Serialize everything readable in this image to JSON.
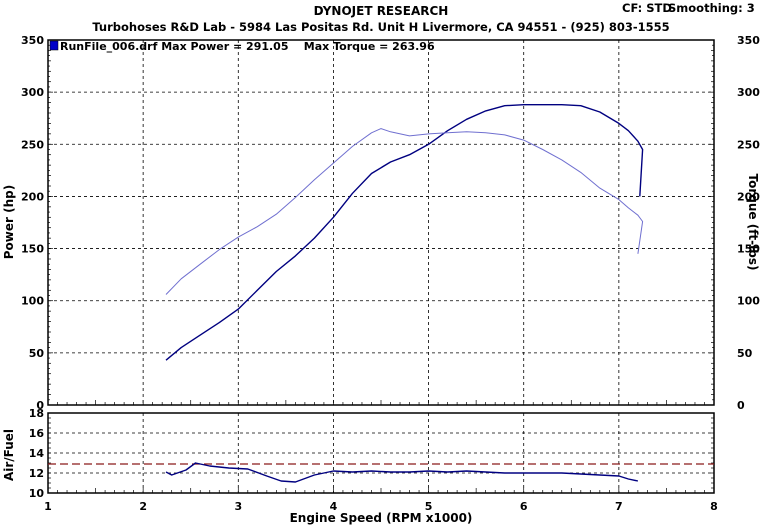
{
  "header": {
    "title": "DYNOJET RESEARCH",
    "subtitle": "Turbohoses R&D Lab - 5984 Las Positas Rd. Unit H Livermore, CA 94551 - (925) 803-1555",
    "cf": "CF: STD",
    "smoothing": "Smoothing: 3"
  },
  "legend": {
    "text": "RunFile_006.drf Max Power = 291.05    Max Torque = 263.96",
    "swatch_color": "#0000c8"
  },
  "colors": {
    "power": "#000080",
    "torque": "#7070d0",
    "afr": "#000080",
    "target": "#8b1a1a",
    "grid": "#000000"
  },
  "chart_data": [
    {
      "type": "line",
      "title": "",
      "xlabel": "Engine Speed (RPM x1000)",
      "ylabel": "Power (hp)",
      "y2label": "Torque (ft-lbs)",
      "xlim": [
        1,
        8
      ],
      "ylim": [
        0,
        350
      ],
      "y2lim": [
        0,
        350
      ],
      "xticks": [
        1,
        2,
        3,
        4,
        5,
        6,
        7,
        8
      ],
      "yticks": [
        0,
        50,
        100,
        150,
        200,
        250,
        300,
        350
      ],
      "grid": true,
      "series": [
        {
          "key": "power",
          "x": [
            2.24,
            2.4,
            2.6,
            2.8,
            3.0,
            3.2,
            3.4,
            3.6,
            3.8,
            4.0,
            4.2,
            4.4,
            4.6,
            4.8,
            5.0,
            5.2,
            5.4,
            5.6,
            5.8,
            6.0,
            6.2,
            6.4,
            6.6,
            6.8,
            7.0,
            7.1,
            7.2,
            7.25,
            7.22
          ],
          "y": [
            43,
            55,
            67,
            79,
            92,
            110,
            128,
            143,
            160,
            180,
            203,
            222,
            233,
            240,
            250,
            263,
            274,
            282,
            287,
            288,
            288,
            288,
            287,
            281,
            270,
            263,
            253,
            245,
            200
          ]
        },
        {
          "key": "torque",
          "x": [
            2.24,
            2.4,
            2.6,
            2.8,
            3.0,
            3.2,
            3.4,
            3.6,
            3.8,
            4.0,
            4.2,
            4.4,
            4.5,
            4.6,
            4.8,
            5.0,
            5.2,
            5.4,
            5.6,
            5.8,
            6.0,
            6.2,
            6.4,
            6.6,
            6.8,
            7.0,
            7.1,
            7.2,
            7.25,
            7.2
          ],
          "y": [
            106,
            121,
            135,
            149,
            161,
            171,
            183,
            199,
            216,
            232,
            248,
            261,
            265,
            262,
            258,
            260,
            261,
            262,
            261,
            259,
            254,
            245,
            235,
            223,
            208,
            197,
            189,
            182,
            176,
            145
          ]
        }
      ]
    },
    {
      "type": "line",
      "title": "",
      "xlabel": "Engine Speed (RPM x1000)",
      "ylabel": "Air/Fuel",
      "xlim": [
        1,
        8
      ],
      "ylim": [
        10,
        18
      ],
      "yticks": [
        10,
        12,
        14,
        16,
        18
      ],
      "grid": true,
      "reference_line": 12.9,
      "series": [
        {
          "key": "afr",
          "x": [
            2.24,
            2.3,
            2.45,
            2.55,
            2.7,
            2.9,
            3.1,
            3.3,
            3.45,
            3.6,
            3.8,
            4.0,
            4.2,
            4.4,
            4.6,
            4.8,
            5.0,
            5.2,
            5.4,
            5.6,
            5.8,
            6.0,
            6.2,
            6.4,
            6.6,
            6.8,
            7.0,
            7.1,
            7.2
          ],
          "y": [
            12.1,
            11.8,
            12.3,
            13.0,
            12.7,
            12.5,
            12.4,
            11.7,
            11.2,
            11.1,
            11.8,
            12.2,
            12.1,
            12.2,
            12.1,
            12.1,
            12.2,
            12.1,
            12.2,
            12.1,
            12.0,
            12.0,
            12.0,
            12.0,
            11.9,
            11.8,
            11.7,
            11.4,
            11.2
          ]
        }
      ]
    }
  ]
}
